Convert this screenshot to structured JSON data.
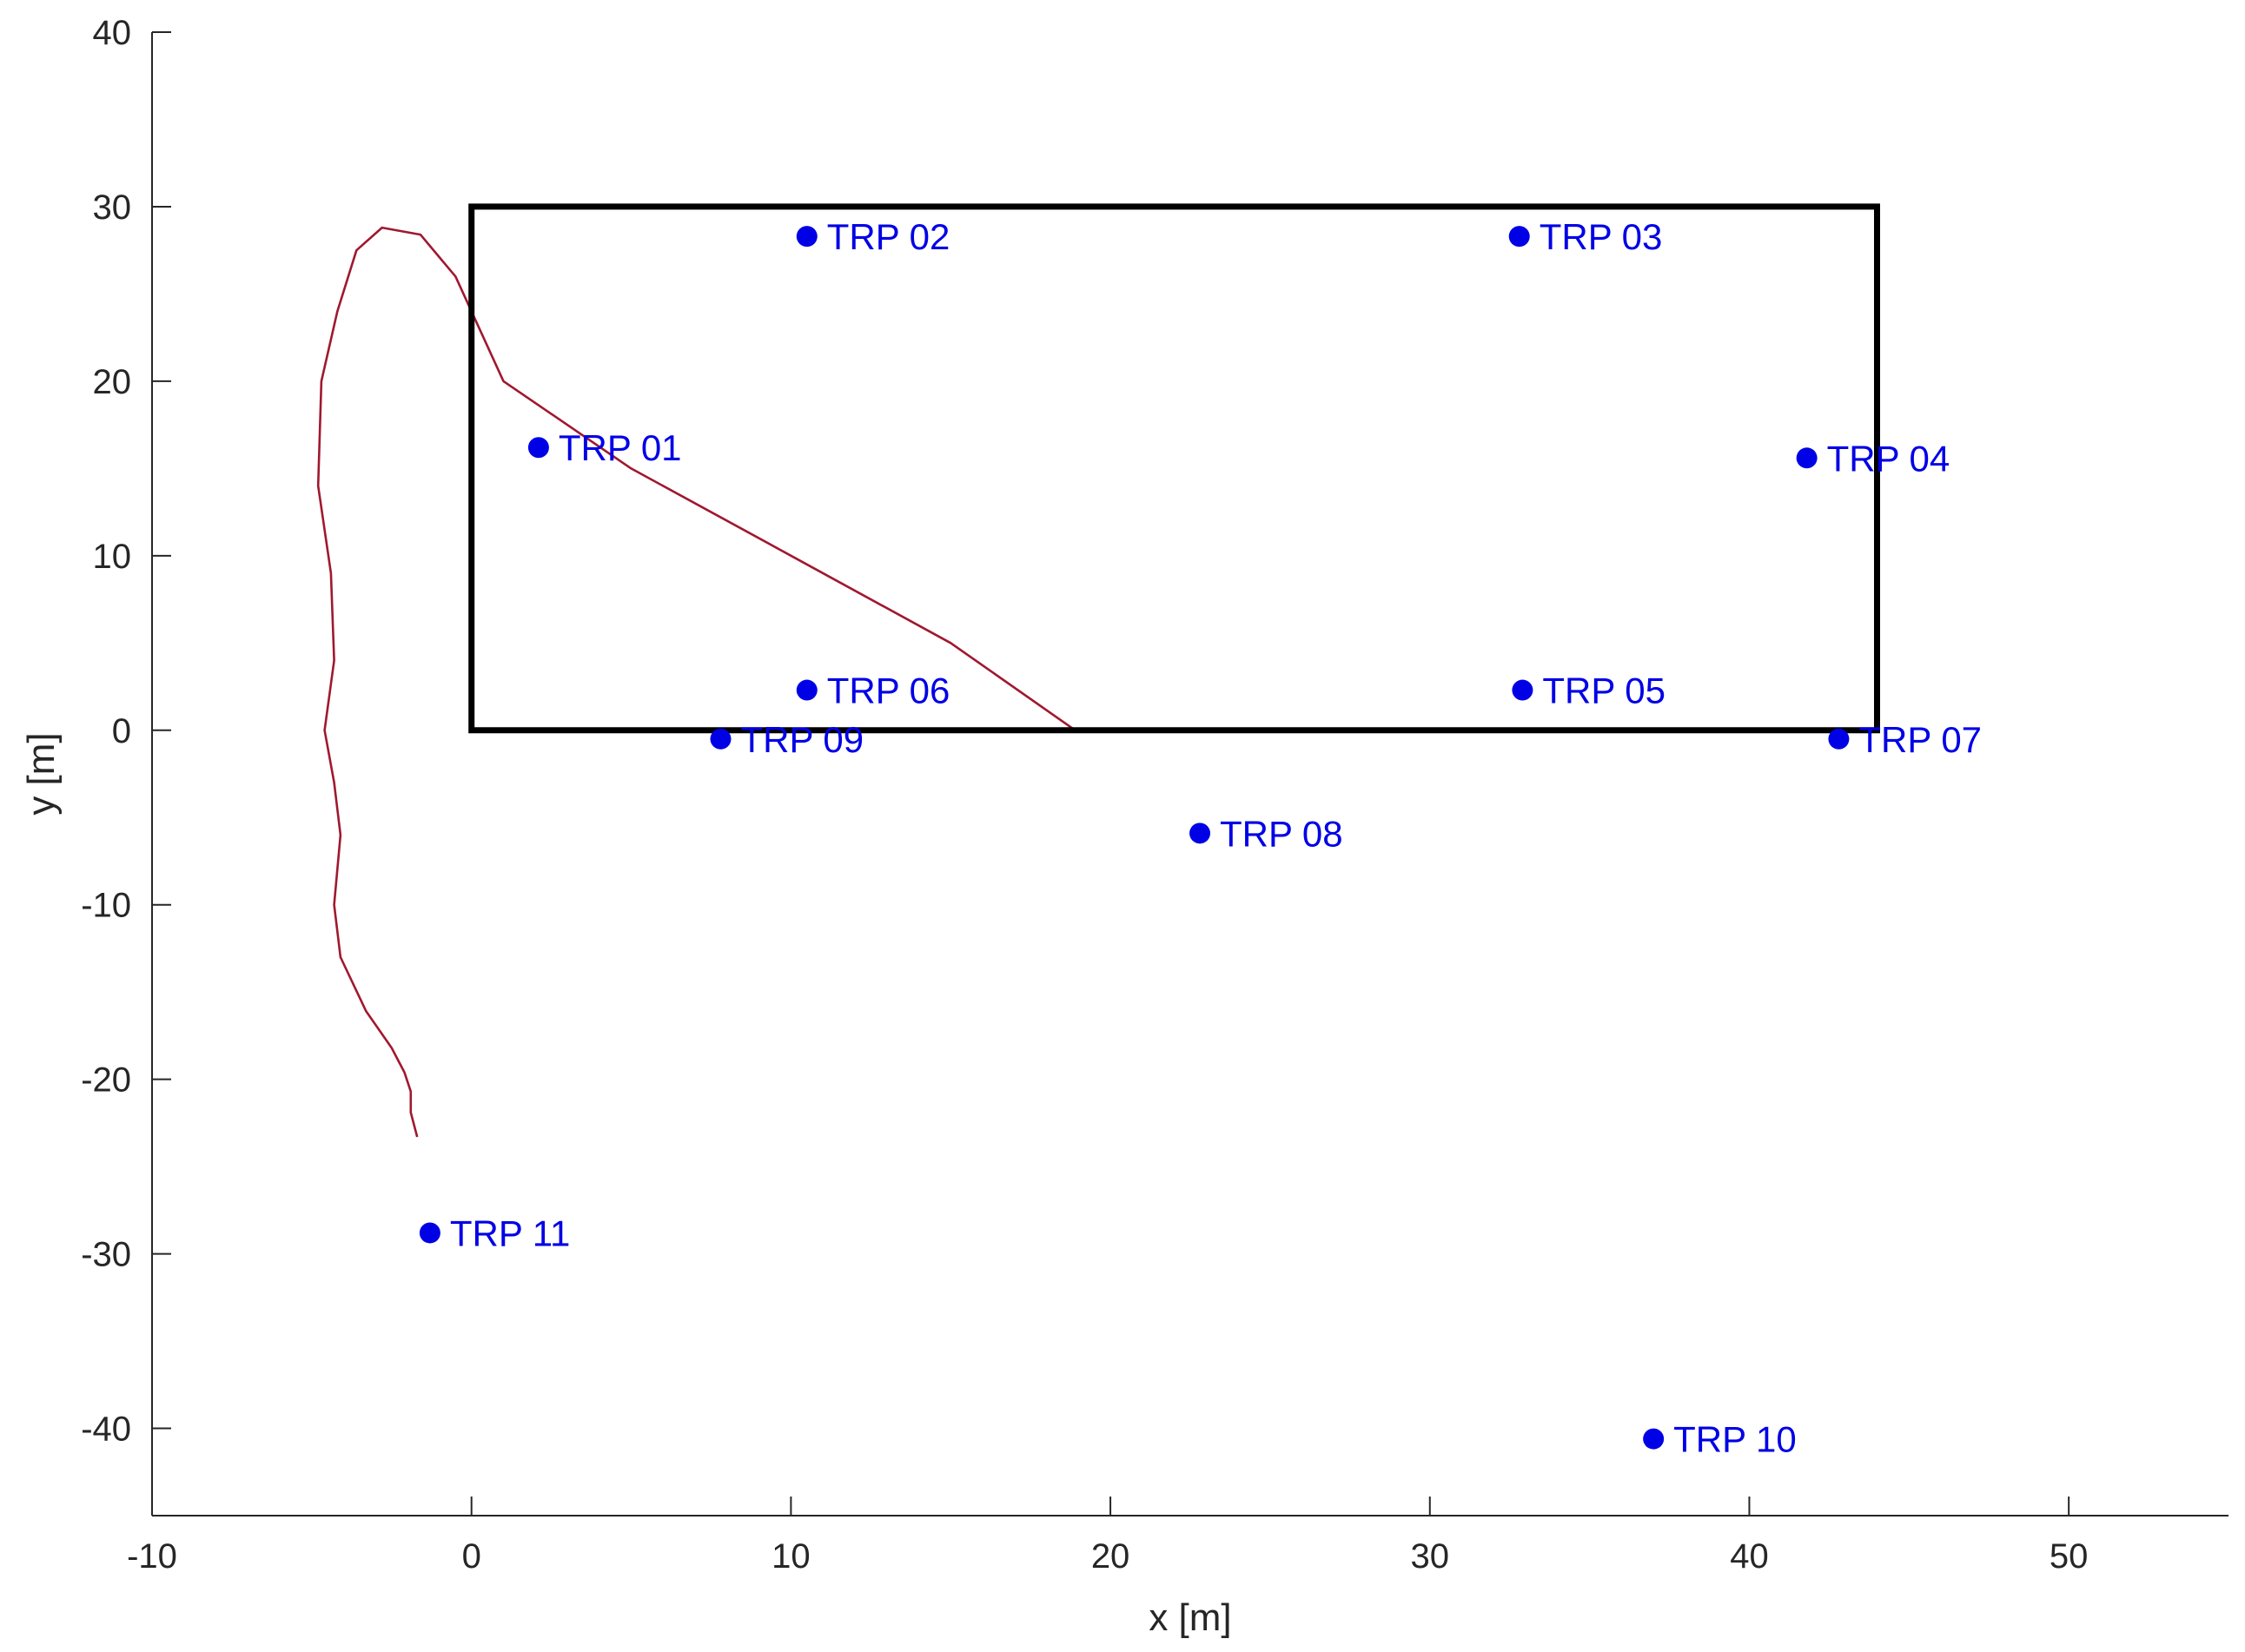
{
  "chart_data": {
    "type": "scatter",
    "xlabel": "x [m]",
    "ylabel": "y [m]",
    "xlim": [
      -10,
      55
    ],
    "ylim": [
      -45,
      40
    ],
    "xticks": [
      -10,
      0,
      10,
      20,
      30,
      40,
      50
    ],
    "yticks": [
      -40,
      -30,
      -20,
      -10,
      0,
      10,
      20,
      30,
      40
    ],
    "grid": false,
    "colors": {
      "points": "#0000e6",
      "boundary": "#000000",
      "axis": "#262626",
      "trajectories": [
        "#a0182f",
        "#1f5a7a",
        "#2a8fa8",
        "#7cc8dc"
      ]
    },
    "boundary": {
      "x": [
        0,
        44,
        44,
        0,
        0
      ],
      "y": [
        0,
        0,
        30,
        30,
        0
      ]
    },
    "points": [
      {
        "label": "TRP 01",
        "x": 2.1,
        "y": 16.2
      },
      {
        "label": "TRP 02",
        "x": 10.5,
        "y": 28.3
      },
      {
        "label": "TRP 03",
        "x": 32.8,
        "y": 28.3
      },
      {
        "label": "TRP 04",
        "x": 41.8,
        "y": 15.6
      },
      {
        "label": "TRP 05",
        "x": 32.9,
        "y": 2.3
      },
      {
        "label": "TRP 06",
        "x": 10.5,
        "y": 2.3
      },
      {
        "label": "TRP 07",
        "x": 42.8,
        "y": -0.5
      },
      {
        "label": "TRP 08",
        "x": 22.8,
        "y": -5.9
      },
      {
        "label": "TRP 09",
        "x": 7.8,
        "y": -0.5
      },
      {
        "label": "TRP 10",
        "x": 37.0,
        "y": -40.6
      },
      {
        "label": "TRP 11",
        "x": -1.3,
        "y": -28.8
      }
    ],
    "trajectories": [
      {
        "x": [
          -1.7,
          -1.9,
          -1.9,
          -2.1,
          -2.5,
          -3.3,
          -4.1,
          -4.3,
          -4.1,
          -4.3,
          -4.6,
          -4.3,
          -4.4,
          -4.8,
          -4.7,
          -4.2,
          -3.6,
          -2.8,
          -1.6,
          -0.5,
          1.0,
          5.0,
          10.0,
          15.0,
          18.9
        ],
        "y": [
          -23.3,
          -21.9,
          -20.7,
          -19.6,
          -18.2,
          -16.1,
          -13.0,
          -10.0,
          -6.0,
          -3.0,
          0.0,
          4.0,
          9.0,
          14.0,
          20.0,
          24.0,
          27.5,
          28.8,
          28.4,
          26.0,
          20.0,
          15.0,
          10.0,
          5.0,
          0.0
        ]
      }
    ]
  }
}
